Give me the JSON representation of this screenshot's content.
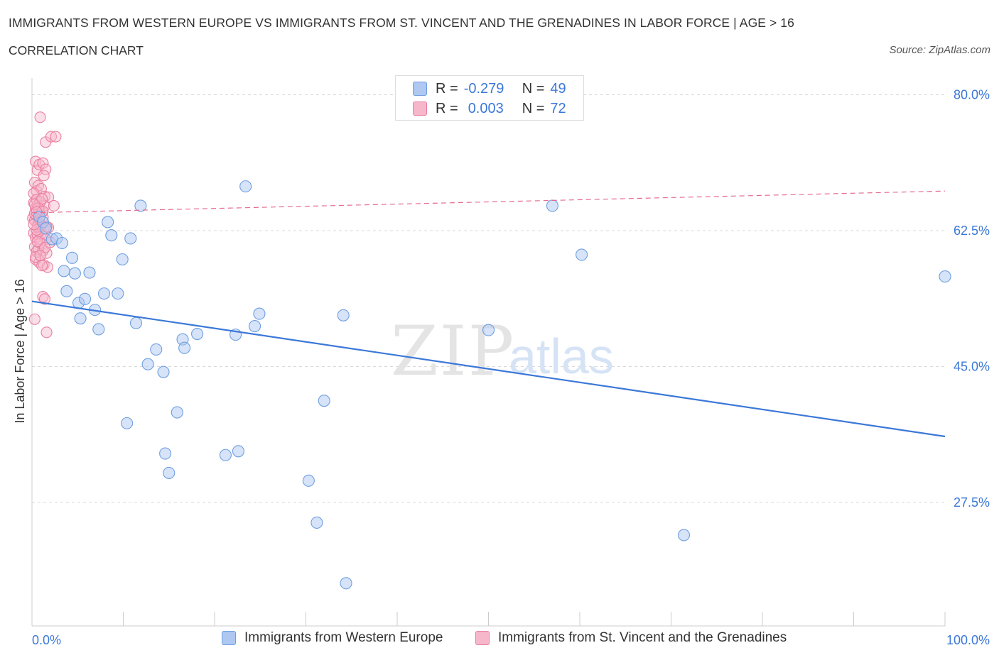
{
  "header": {
    "title": "IMMIGRANTS FROM WESTERN EUROPE VS IMMIGRANTS FROM ST. VINCENT AND THE GRENADINES IN LABOR FORCE | AGE > 16",
    "subtitle": "CORRELATION CHART",
    "source": "Source: ZipAtlas.com"
  },
  "watermark": {
    "zip": "ZIP",
    "atlas": "atlas"
  },
  "legend": {
    "r_label": "R =",
    "n_label": "N =",
    "rows": [
      {
        "r": "-0.279",
        "n": "49"
      },
      {
        "r": "0.003",
        "n": "72"
      }
    ]
  },
  "colors": {
    "blue_fill": "#aec8f2",
    "blue_stroke": "#6f9fe0",
    "blue_line": "#3b78d8",
    "pink_fill": "#f6b7cb",
    "pink_stroke": "#ea7fa0",
    "pink_line": "#e56b8e",
    "tick_label": "#3b78d8",
    "grid": "#d9d9d9"
  },
  "chart_data": {
    "type": "scatter",
    "title": "IMMIGRANTS FROM WESTERN EUROPE VS IMMIGRANTS FROM ST. VINCENT AND THE GRENADINES IN LABOR FORCE | AGE > 16",
    "xlabel": "",
    "ylabel": "In Labor Force | Age > 16",
    "xlim": [
      0,
      100
    ],
    "ylim": [
      10,
      80
    ],
    "x_tick_labels": [
      "0.0%",
      "100.0%"
    ],
    "y_ticks": [
      80,
      62.5,
      45,
      27.5
    ],
    "y_tick_labels": [
      "80.0%",
      "62.5%",
      "45.0%",
      "27.5%"
    ],
    "grid": true,
    "legend_position": "bottom",
    "series": [
      {
        "name": "Immigrants from Western Europe",
        "color": "#aec8f2",
        "trend": {
          "x0": 0,
          "y0": 53.4,
          "x1": 100,
          "y1": 36.0
        },
        "points": [
          [
            0.8,
            64.3
          ],
          [
            1.2,
            63.6
          ],
          [
            1.5,
            62.8
          ],
          [
            2.2,
            61.4
          ],
          [
            2.7,
            61.5
          ],
          [
            3.3,
            60.9
          ],
          [
            3.5,
            57.3
          ],
          [
            3.8,
            54.7
          ],
          [
            4.4,
            59.0
          ],
          [
            4.7,
            57.0
          ],
          [
            5.1,
            53.2
          ],
          [
            5.3,
            51.2
          ],
          [
            5.8,
            53.7
          ],
          [
            6.3,
            57.1
          ],
          [
            6.9,
            52.3
          ],
          [
            7.3,
            49.8
          ],
          [
            7.9,
            54.4
          ],
          [
            8.3,
            63.6
          ],
          [
            8.7,
            61.9
          ],
          [
            9.4,
            54.4
          ],
          [
            9.9,
            58.8
          ],
          [
            10.4,
            37.7
          ],
          [
            10.8,
            61.5
          ],
          [
            11.4,
            50.6
          ],
          [
            11.9,
            65.7
          ],
          [
            12.7,
            45.3
          ],
          [
            13.6,
            47.2
          ],
          [
            14.4,
            44.3
          ],
          [
            14.6,
            33.8
          ],
          [
            15.0,
            31.3
          ],
          [
            15.9,
            39.1
          ],
          [
            16.5,
            48.5
          ],
          [
            16.7,
            47.4
          ],
          [
            18.1,
            49.2
          ],
          [
            21.2,
            33.6
          ],
          [
            22.3,
            49.1
          ],
          [
            22.6,
            34.1
          ],
          [
            23.4,
            68.2
          ],
          [
            24.4,
            50.2
          ],
          [
            24.9,
            51.8
          ],
          [
            30.3,
            30.3
          ],
          [
            31.2,
            24.9
          ],
          [
            32.0,
            40.6
          ],
          [
            34.1,
            51.6
          ],
          [
            34.4,
            17.1
          ],
          [
            50.0,
            49.7
          ],
          [
            57.0,
            65.7
          ],
          [
            60.2,
            59.4
          ],
          [
            71.4,
            23.3
          ],
          [
            100.0,
            56.6
          ]
        ]
      },
      {
        "name": "Immigrants from St. Vincent and the Grenadines",
        "color": "#f6b7cb",
        "trend": {
          "x0": 0,
          "y0": 64.8,
          "x1": 100,
          "y1": 67.6
        },
        "points": [
          [
            0.9,
            77.1
          ],
          [
            1.5,
            73.9
          ],
          [
            2.1,
            74.6
          ],
          [
            2.6,
            74.6
          ],
          [
            0.4,
            71.4
          ],
          [
            0.6,
            70.3
          ],
          [
            0.8,
            71.0
          ],
          [
            1.2,
            71.2
          ],
          [
            1.5,
            70.4
          ],
          [
            1.3,
            69.6
          ],
          [
            0.3,
            68.7
          ],
          [
            0.5,
            67.6
          ],
          [
            0.7,
            68.3
          ],
          [
            1.0,
            67.9
          ],
          [
            1.4,
            66.9
          ],
          [
            1.8,
            66.8
          ],
          [
            0.2,
            66.1
          ],
          [
            0.4,
            65.4
          ],
          [
            0.6,
            65.8
          ],
          [
            0.8,
            65.1
          ],
          [
            1.1,
            64.9
          ],
          [
            1.4,
            65.7
          ],
          [
            2.4,
            65.7
          ],
          [
            0.1,
            64.1
          ],
          [
            0.3,
            63.8
          ],
          [
            0.5,
            64.4
          ],
          [
            0.7,
            63.4
          ],
          [
            0.9,
            62.9
          ],
          [
            1.3,
            62.7
          ],
          [
            1.8,
            62.9
          ],
          [
            0.2,
            62.2
          ],
          [
            0.4,
            61.6
          ],
          [
            0.6,
            62.0
          ],
          [
            0.8,
            61.3
          ],
          [
            1.0,
            62.1
          ],
          [
            1.5,
            61.4
          ],
          [
            2.0,
            61.0
          ],
          [
            0.3,
            60.4
          ],
          [
            0.5,
            59.8
          ],
          [
            0.7,
            60.1
          ],
          [
            1.2,
            59.9
          ],
          [
            1.6,
            59.6
          ],
          [
            0.4,
            58.8
          ],
          [
            0.8,
            58.4
          ],
          [
            1.3,
            58.1
          ],
          [
            1.7,
            57.8
          ],
          [
            1.2,
            54.0
          ],
          [
            1.4,
            53.7
          ],
          [
            0.3,
            51.1
          ],
          [
            1.6,
            49.4
          ],
          [
            0.2,
            67.3
          ],
          [
            0.5,
            66.5
          ],
          [
            0.9,
            66.2
          ],
          [
            1.2,
            64.2
          ],
          [
            0.6,
            63.0
          ],
          [
            0.9,
            60.9
          ],
          [
            0.4,
            59.1
          ],
          [
            1.1,
            58.0
          ],
          [
            0.3,
            64.7
          ],
          [
            0.7,
            65.4
          ],
          [
            1.0,
            63.2
          ],
          [
            1.6,
            63.0
          ],
          [
            0.5,
            62.6
          ],
          [
            0.8,
            64.0
          ],
          [
            1.2,
            65.0
          ],
          [
            0.2,
            63.3
          ],
          [
            0.6,
            61.1
          ],
          [
            1.4,
            60.3
          ],
          [
            0.9,
            59.3
          ],
          [
            0.3,
            65.9
          ],
          [
            1.1,
            66.6
          ],
          [
            0.5,
            64.9
          ]
        ]
      }
    ]
  },
  "bottom_legend": {
    "items": [
      {
        "label": "Immigrants from Western Europe"
      },
      {
        "label": "Immigrants from St. Vincent and the Grenadines"
      }
    ]
  }
}
